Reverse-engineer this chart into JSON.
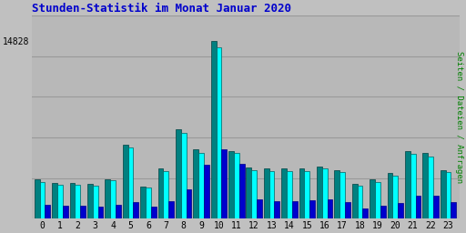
{
  "title": "Stunden-Statistik im Monat Januar 2020",
  "title_color": "#0000cc",
  "title_fontsize": 9,
  "background_color": "#c0c0c0",
  "plot_bg_color": "#b8b8b8",
  "x_labels": [
    "0",
    "1",
    "2",
    "3",
    "4",
    "5",
    "6",
    "7",
    "8",
    "9",
    "10",
    "11",
    "12",
    "13",
    "14",
    "15",
    "16",
    "17",
    "18",
    "19",
    "20",
    "21",
    "22",
    "23"
  ],
  "ylabel_right": "Seiten / Dateien / Anfragen",
  "ylabel_color": "#008000",
  "ytick_label": "14828",
  "ylim": [
    0,
    17000
  ],
  "bar_width": 0.3,
  "values_seiten": [
    3300,
    3000,
    3000,
    2900,
    3300,
    6200,
    2700,
    4200,
    7500,
    5800,
    14828,
    5700,
    4300,
    4200,
    4200,
    4200,
    4400,
    4100,
    2900,
    3300,
    3800,
    5700,
    5500,
    4100
  ],
  "values_dateien": [
    3100,
    2850,
    2850,
    2750,
    3200,
    6000,
    2600,
    4000,
    7200,
    5500,
    14300,
    5500,
    4100,
    4000,
    4000,
    4000,
    4200,
    3900,
    2750,
    3100,
    3600,
    5400,
    5200,
    3900
  ],
  "values_anfragen": [
    1200,
    1100,
    1100,
    1050,
    1200,
    1400,
    1000,
    1500,
    2500,
    4500,
    5800,
    4600,
    1600,
    1500,
    1500,
    1550,
    1600,
    1400,
    900,
    1100,
    1300,
    1900,
    1900,
    1400
  ],
  "color_seiten": "#008080",
  "color_dateien": "#00ffff",
  "color_anfragen": "#0000cd",
  "edge_color_seiten": "#004040",
  "edge_color_dateien": "#006060",
  "edge_color_anfragen": "#00008b",
  "grid_color": "#999999",
  "n_gridlines": 5
}
